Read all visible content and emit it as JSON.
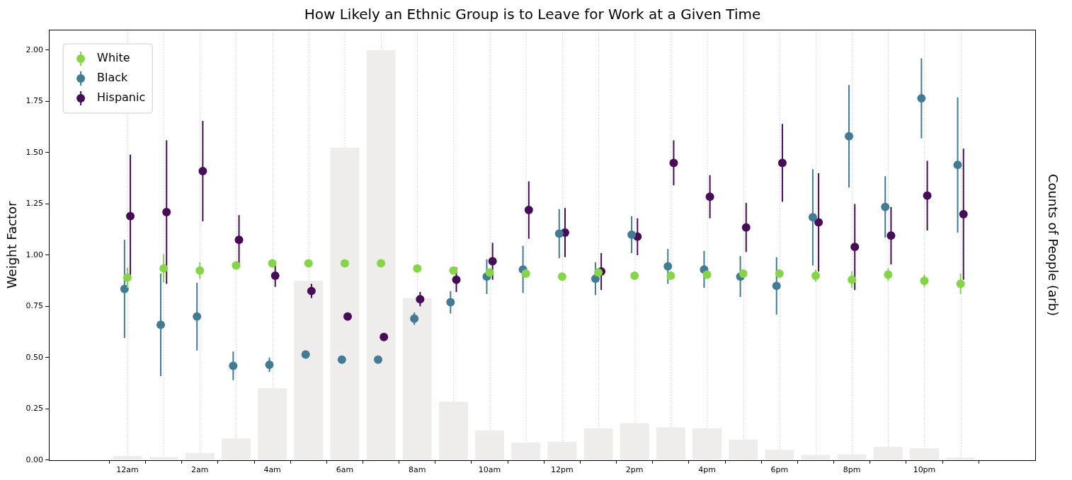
{
  "chart_data": {
    "type": "scatter",
    "title": "How Likely an Ethnic Group is to Leave for Work at a Given Time",
    "y_label": "Weight Factor",
    "y2_label": "Counts of People (arb)",
    "categories": [
      "12am",
      null,
      "2am",
      null,
      "4am",
      null,
      "6am",
      null,
      "8am",
      null,
      "10am",
      null,
      "12pm",
      null,
      "2pm",
      null,
      "4pm",
      null,
      "6pm",
      null,
      "8pm",
      null,
      "10pm",
      null
    ],
    "ylim": [
      0,
      2.1
    ],
    "yticks": [
      {
        "value": 0,
        "label": "0.00"
      },
      {
        "value": 0.25,
        "label": "0.25"
      },
      {
        "value": 0.5,
        "label": "0.50"
      },
      {
        "value": 0.75,
        "label": "0.75"
      },
      {
        "value": 1,
        "label": "1.00"
      },
      {
        "value": 1.25,
        "label": "1.25"
      },
      {
        "value": 1.5,
        "label": "1.50"
      },
      {
        "value": 1.75,
        "label": "1.75"
      },
      {
        "value": 2,
        "label": "2.00"
      }
    ],
    "y2lim": [
      0,
      2.1
    ],
    "grid": true,
    "legend": "upper left",
    "series": [
      {
        "name": "White",
        "color": "#86d549",
        "marker": "circle",
        "values": [
          0.89,
          0.935,
          0.925,
          0.95,
          0.96,
          0.96,
          0.96,
          0.96,
          0.935,
          0.925,
          0.915,
          0.91,
          0.895,
          0.915,
          0.9,
          0.9,
          0.905,
          0.91,
          0.91,
          0.9,
          0.88,
          0.905,
          0.875,
          0.86
        ],
        "errors": [
          0.05,
          0.07,
          0.04,
          0.02,
          0.01,
          0.01,
          0.01,
          0.01,
          0.01,
          0.01,
          0.02,
          0.02,
          0.02,
          0.02,
          0.02,
          0.02,
          0.02,
          0.02,
          0.02,
          0.03,
          0.04,
          0.03,
          0.03,
          0.05
        ]
      },
      {
        "name": "Black",
        "color": "#417b94",
        "marker": "circle",
        "values": [
          0.835,
          0.66,
          0.7,
          0.46,
          0.465,
          0.515,
          0.49,
          0.49,
          0.69,
          0.77,
          0.895,
          0.93,
          1.105,
          0.885,
          1.1,
          0.945,
          0.93,
          0.895,
          0.85,
          1.185,
          1.58,
          1.235,
          1.765,
          1.44
        ],
        "errors": [
          0.24,
          0.25,
          0.165,
          0.07,
          0.035,
          0.02,
          0.01,
          0.01,
          0.03,
          0.055,
          0.085,
          0.115,
          0.12,
          0.08,
          0.09,
          0.085,
          0.09,
          0.1,
          0.14,
          0.235,
          0.25,
          0.15,
          0.195,
          0.33
        ]
      },
      {
        "name": "Hispanic",
        "color": "#470b57",
        "marker": "circle",
        "values": [
          1.19,
          1.21,
          1.41,
          1.075,
          0.9,
          0.825,
          0.7,
          0.6,
          0.785,
          0.88,
          0.97,
          1.22,
          1.11,
          0.92,
          1.09,
          1.45,
          1.285,
          1.135,
          1.45,
          1.16,
          1.04,
          1.095,
          1.29,
          1.2
        ],
        "errors": [
          0.3,
          0.35,
          0.245,
          0.12,
          0.055,
          0.035,
          0.015,
          0.01,
          0.035,
          0.06,
          0.09,
          0.14,
          0.12,
          0.09,
          0.09,
          0.11,
          0.105,
          0.12,
          0.19,
          0.24,
          0.21,
          0.14,
          0.17,
          0.32
        ]
      }
    ],
    "bars": {
      "type": "bar",
      "axis": "y2",
      "color": "#eeedeb",
      "values": [
        0.02,
        0.015,
        0.035,
        0.105,
        0.35,
        0.875,
        1.525,
        2.0,
        0.79,
        0.285,
        0.145,
        0.085,
        0.09,
        0.155,
        0.18,
        0.16,
        0.155,
        0.1,
        0.05,
        0.025,
        0.028,
        0.065,
        0.057,
        0.012
      ]
    }
  }
}
